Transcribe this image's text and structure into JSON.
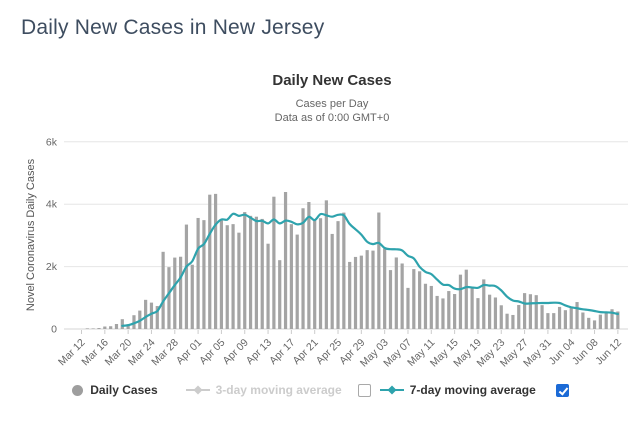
{
  "page": {
    "title": "Daily New Cases in New Jersey"
  },
  "chart": {
    "title": "Daily New Cases",
    "subtitle_line1": "Cases per Day",
    "subtitle_line2": "Data as of 0:00 GMT+0",
    "y_axis_title": "Novel Coronavirus Daily Cases"
  },
  "legend": {
    "daily_cases_label": "Daily Cases",
    "ma3_label": "3-day moving average",
    "ma7_label": "7-day moving average",
    "ma3_checked": false,
    "ma7_checked": true
  },
  "colors": {
    "bars": "#a4a4a4",
    "ma7_line": "#2ea3ad",
    "disabled_legend": "#cccccc",
    "checkbox_checked": "#1b6ad6",
    "gridline": "#e6e6e6",
    "axis_text": "#666666",
    "page_title": "#3e4d60"
  },
  "chart_data": {
    "type": "bar",
    "title": "Daily New Cases",
    "xlabel": "",
    "ylabel": "Novel Coronavirus Daily Cases",
    "ylim": [
      0,
      6000
    ],
    "yticks": [
      {
        "value": 0,
        "label": "0"
      },
      {
        "value": 2000,
        "label": "2k"
      },
      {
        "value": 4000,
        "label": "4k"
      },
      {
        "value": 6000,
        "label": "6k"
      }
    ],
    "xtick_every": 4,
    "grid": true,
    "legend_position": "bottom",
    "x": [
      "Mar 12",
      "Mar 13",
      "Mar 14",
      "Mar 15",
      "Mar 16",
      "Mar 17",
      "Mar 18",
      "Mar 19",
      "Mar 20",
      "Mar 21",
      "Mar 22",
      "Mar 23",
      "Mar 24",
      "Mar 25",
      "Mar 26",
      "Mar 27",
      "Mar 28",
      "Mar 29",
      "Mar 30",
      "Mar 31",
      "Apr 01",
      "Apr 02",
      "Apr 03",
      "Apr 04",
      "Apr 05",
      "Apr 06",
      "Apr 07",
      "Apr 08",
      "Apr 09",
      "Apr 10",
      "Apr 11",
      "Apr 12",
      "Apr 13",
      "Apr 14",
      "Apr 15",
      "Apr 16",
      "Apr 17",
      "Apr 18",
      "Apr 19",
      "Apr 20",
      "Apr 21",
      "Apr 22",
      "Apr 23",
      "Apr 24",
      "Apr 25",
      "Apr 26",
      "Apr 27",
      "Apr 28",
      "Apr 29",
      "Apr 30",
      "May 01",
      "May 02",
      "May 03",
      "May 04",
      "May 05",
      "May 06",
      "May 07",
      "May 08",
      "May 09",
      "May 10",
      "May 11",
      "May 12",
      "May 13",
      "May 14",
      "May 15",
      "May 16",
      "May 17",
      "May 18",
      "May 19",
      "May 20",
      "May 21",
      "May 22",
      "May 23",
      "May 24",
      "May 25",
      "May 26",
      "May 27",
      "May 28",
      "May 29",
      "May 30",
      "May 31",
      "Jun 01",
      "Jun 02",
      "Jun 03",
      "Jun 04",
      "Jun 05",
      "Jun 06",
      "Jun 07",
      "Jun 08",
      "Jun 09",
      "Jun 10",
      "Jun 11",
      "Jun 12"
    ],
    "series": [
      {
        "name": "Daily Cases",
        "type": "bar",
        "color": "#a4a4a4",
        "visible": true,
        "values": [
          6,
          21,
          19,
          31,
          80,
          89,
          160,
          315,
          155,
          442,
          590,
          935,
          846,
          736,
          2474,
          1982,
          2289,
          2316,
          3347,
          2060,
          3559,
          3489,
          4305,
          4331,
          3482,
          3326,
          3361,
          3088,
          3748,
          3627,
          3599,
          3528,
          2734,
          4240,
          2206,
          4391,
          3360,
          3026,
          3870,
          4070,
          3500,
          3551,
          4124,
          3047,
          3457,
          3730,
          2150,
          2310,
          2352,
          2528,
          2512,
          3733,
          2577,
          1888,
          2293,
          2100,
          1318,
          1920,
          1850,
          1450,
          1380,
          1060,
          980,
          1216,
          1121,
          1742,
          1902,
          1300,
          990,
          1590,
          1100,
          1010,
          760,
          490,
          450,
          770,
          1150,
          1115,
          1085,
          764,
          509,
          509,
          708,
          603,
          699,
          864,
          529,
          358,
          276,
          460,
          539,
          633,
          561
        ]
      },
      {
        "name": "3-day moving average",
        "type": "line",
        "color": "#cccccc",
        "visible": false,
        "derived": "3-day trailing mean of Daily Cases (hidden in chart)"
      },
      {
        "name": "7-day moving average",
        "type": "line",
        "color": "#2ea3ad",
        "visible": true,
        "derived": "7-day trailing mean of Daily Cases"
      }
    ]
  }
}
